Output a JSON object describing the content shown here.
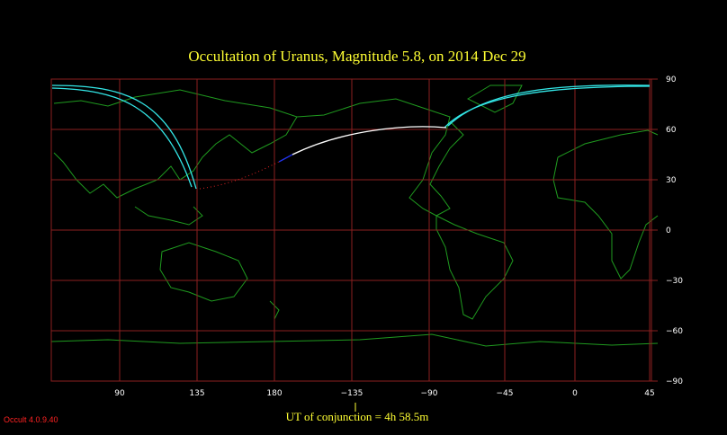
{
  "title": "Occultation  of  Uranus,      Magnitude 5.8,   on  2014 Dec 29",
  "longitude_labels": [
    "90",
    "135",
    "180",
    "−135",
    "−90",
    "−45",
    "0",
    "45"
  ],
  "latitude_labels": [
    "90",
    "60",
    "30",
    "0",
    "−30",
    "−60",
    "−90"
  ],
  "conjunction_label": "UT of conjunction =  4h 58.5m",
  "version": "Occult 4.0.9.40"
}
